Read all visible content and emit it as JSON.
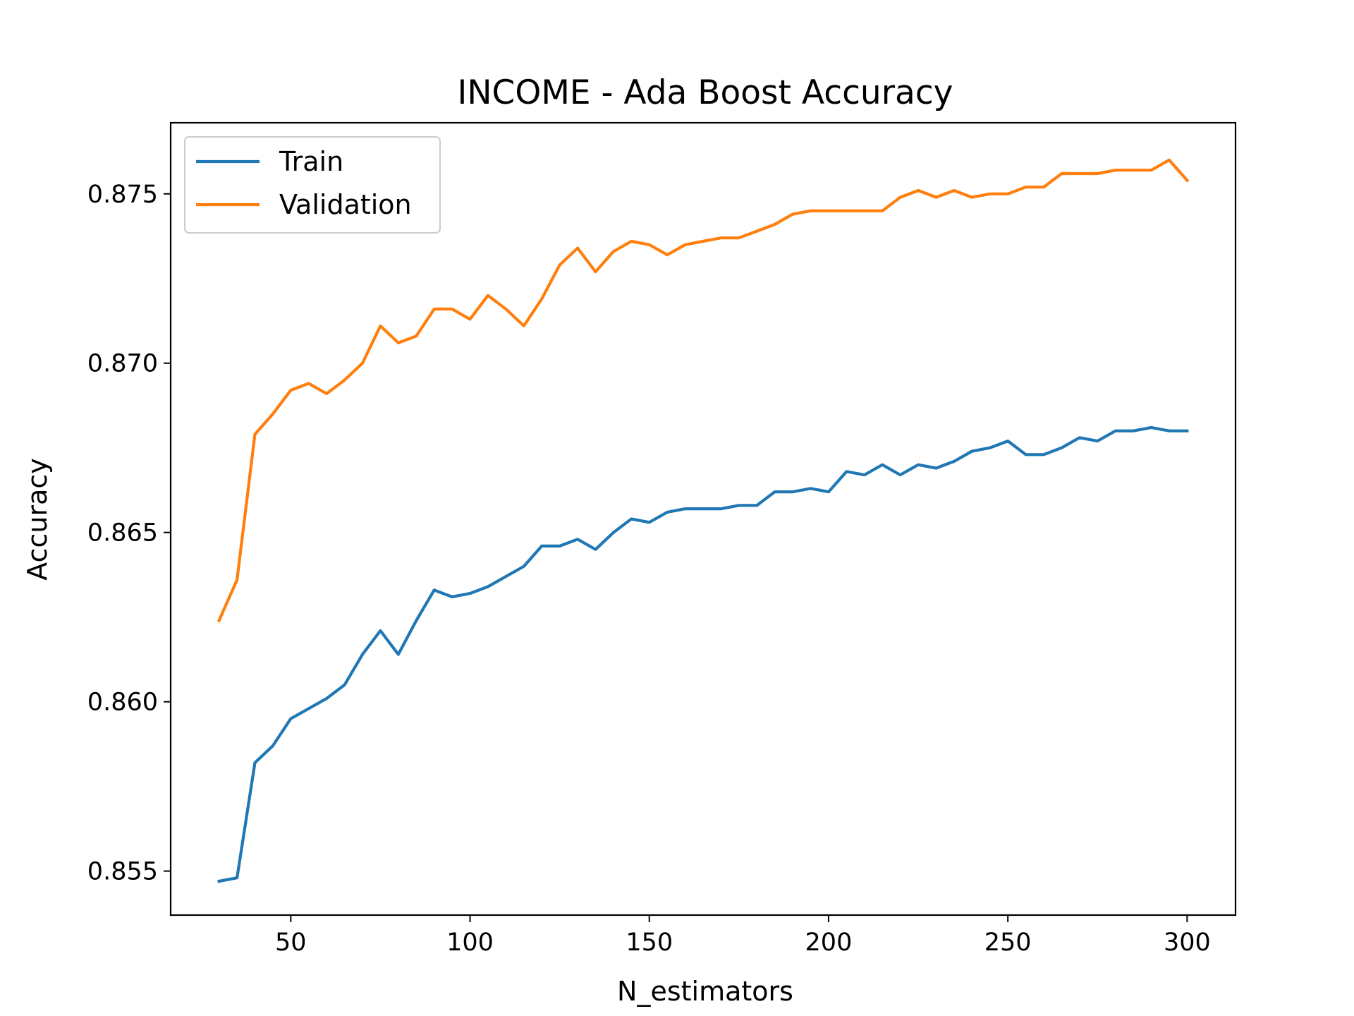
{
  "chart_data": {
    "type": "line",
    "title": "INCOME - Ada Boost Accuracy",
    "xlabel": "N_estimators",
    "ylabel": "Accuracy",
    "xlim": [
      16.5,
      313.5
    ],
    "ylim": [
      0.8537,
      0.8771
    ],
    "xticks": [
      50,
      100,
      150,
      200,
      250,
      300
    ],
    "xtick_labels": [
      "50",
      "100",
      "150",
      "200",
      "250",
      "300"
    ],
    "yticks": [
      0.855,
      0.86,
      0.865,
      0.87,
      0.875
    ],
    "ytick_labels": [
      "0.855",
      "0.860",
      "0.865",
      "0.870",
      "0.875"
    ],
    "grid": false,
    "legend_position": "upper-left",
    "x": [
      30,
      35,
      40,
      45,
      50,
      55,
      60,
      65,
      70,
      75,
      80,
      85,
      90,
      95,
      100,
      105,
      110,
      115,
      120,
      125,
      130,
      135,
      140,
      145,
      150,
      155,
      160,
      165,
      170,
      175,
      180,
      185,
      190,
      195,
      200,
      205,
      210,
      215,
      220,
      225,
      230,
      235,
      240,
      245,
      250,
      255,
      260,
      265,
      270,
      275,
      280,
      285,
      290,
      295,
      300
    ],
    "series": [
      {
        "name": "Train",
        "color": "#1f77b4",
        "values": [
          0.8547,
          0.8548,
          0.8582,
          0.8587,
          0.8595,
          0.8598,
          0.8601,
          0.8605,
          0.8614,
          0.8621,
          0.8614,
          0.8624,
          0.8633,
          0.8631,
          0.8632,
          0.8634,
          0.8637,
          0.864,
          0.8646,
          0.8646,
          0.8648,
          0.8645,
          0.865,
          0.8654,
          0.8653,
          0.8656,
          0.8657,
          0.8657,
          0.8657,
          0.8658,
          0.8658,
          0.8662,
          0.8662,
          0.8663,
          0.8662,
          0.8668,
          0.8667,
          0.867,
          0.8667,
          0.867,
          0.8669,
          0.8671,
          0.8674,
          0.8675,
          0.8677,
          0.8673,
          0.8673,
          0.8675,
          0.8678,
          0.8677,
          0.868,
          0.868,
          0.8681,
          0.868,
          0.868
        ]
      },
      {
        "name": "Validation",
        "color": "#ff7f0e",
        "values": [
          0.8624,
          0.8636,
          0.8679,
          0.8685,
          0.8692,
          0.8694,
          0.8691,
          0.8695,
          0.87,
          0.8711,
          0.8706,
          0.8708,
          0.8716,
          0.8716,
          0.8713,
          0.872,
          0.8716,
          0.8711,
          0.8719,
          0.8729,
          0.8734,
          0.8727,
          0.8733,
          0.8736,
          0.8735,
          0.8732,
          0.8735,
          0.8736,
          0.8737,
          0.8737,
          0.8739,
          0.8741,
          0.8744,
          0.8745,
          0.8745,
          0.8745,
          0.8745,
          0.8745,
          0.8749,
          0.8751,
          0.8749,
          0.8751,
          0.8749,
          0.875,
          0.875,
          0.8752,
          0.8752,
          0.8756,
          0.8756,
          0.8756,
          0.8757,
          0.8757,
          0.8757,
          0.876,
          0.8754
        ]
      }
    ]
  }
}
